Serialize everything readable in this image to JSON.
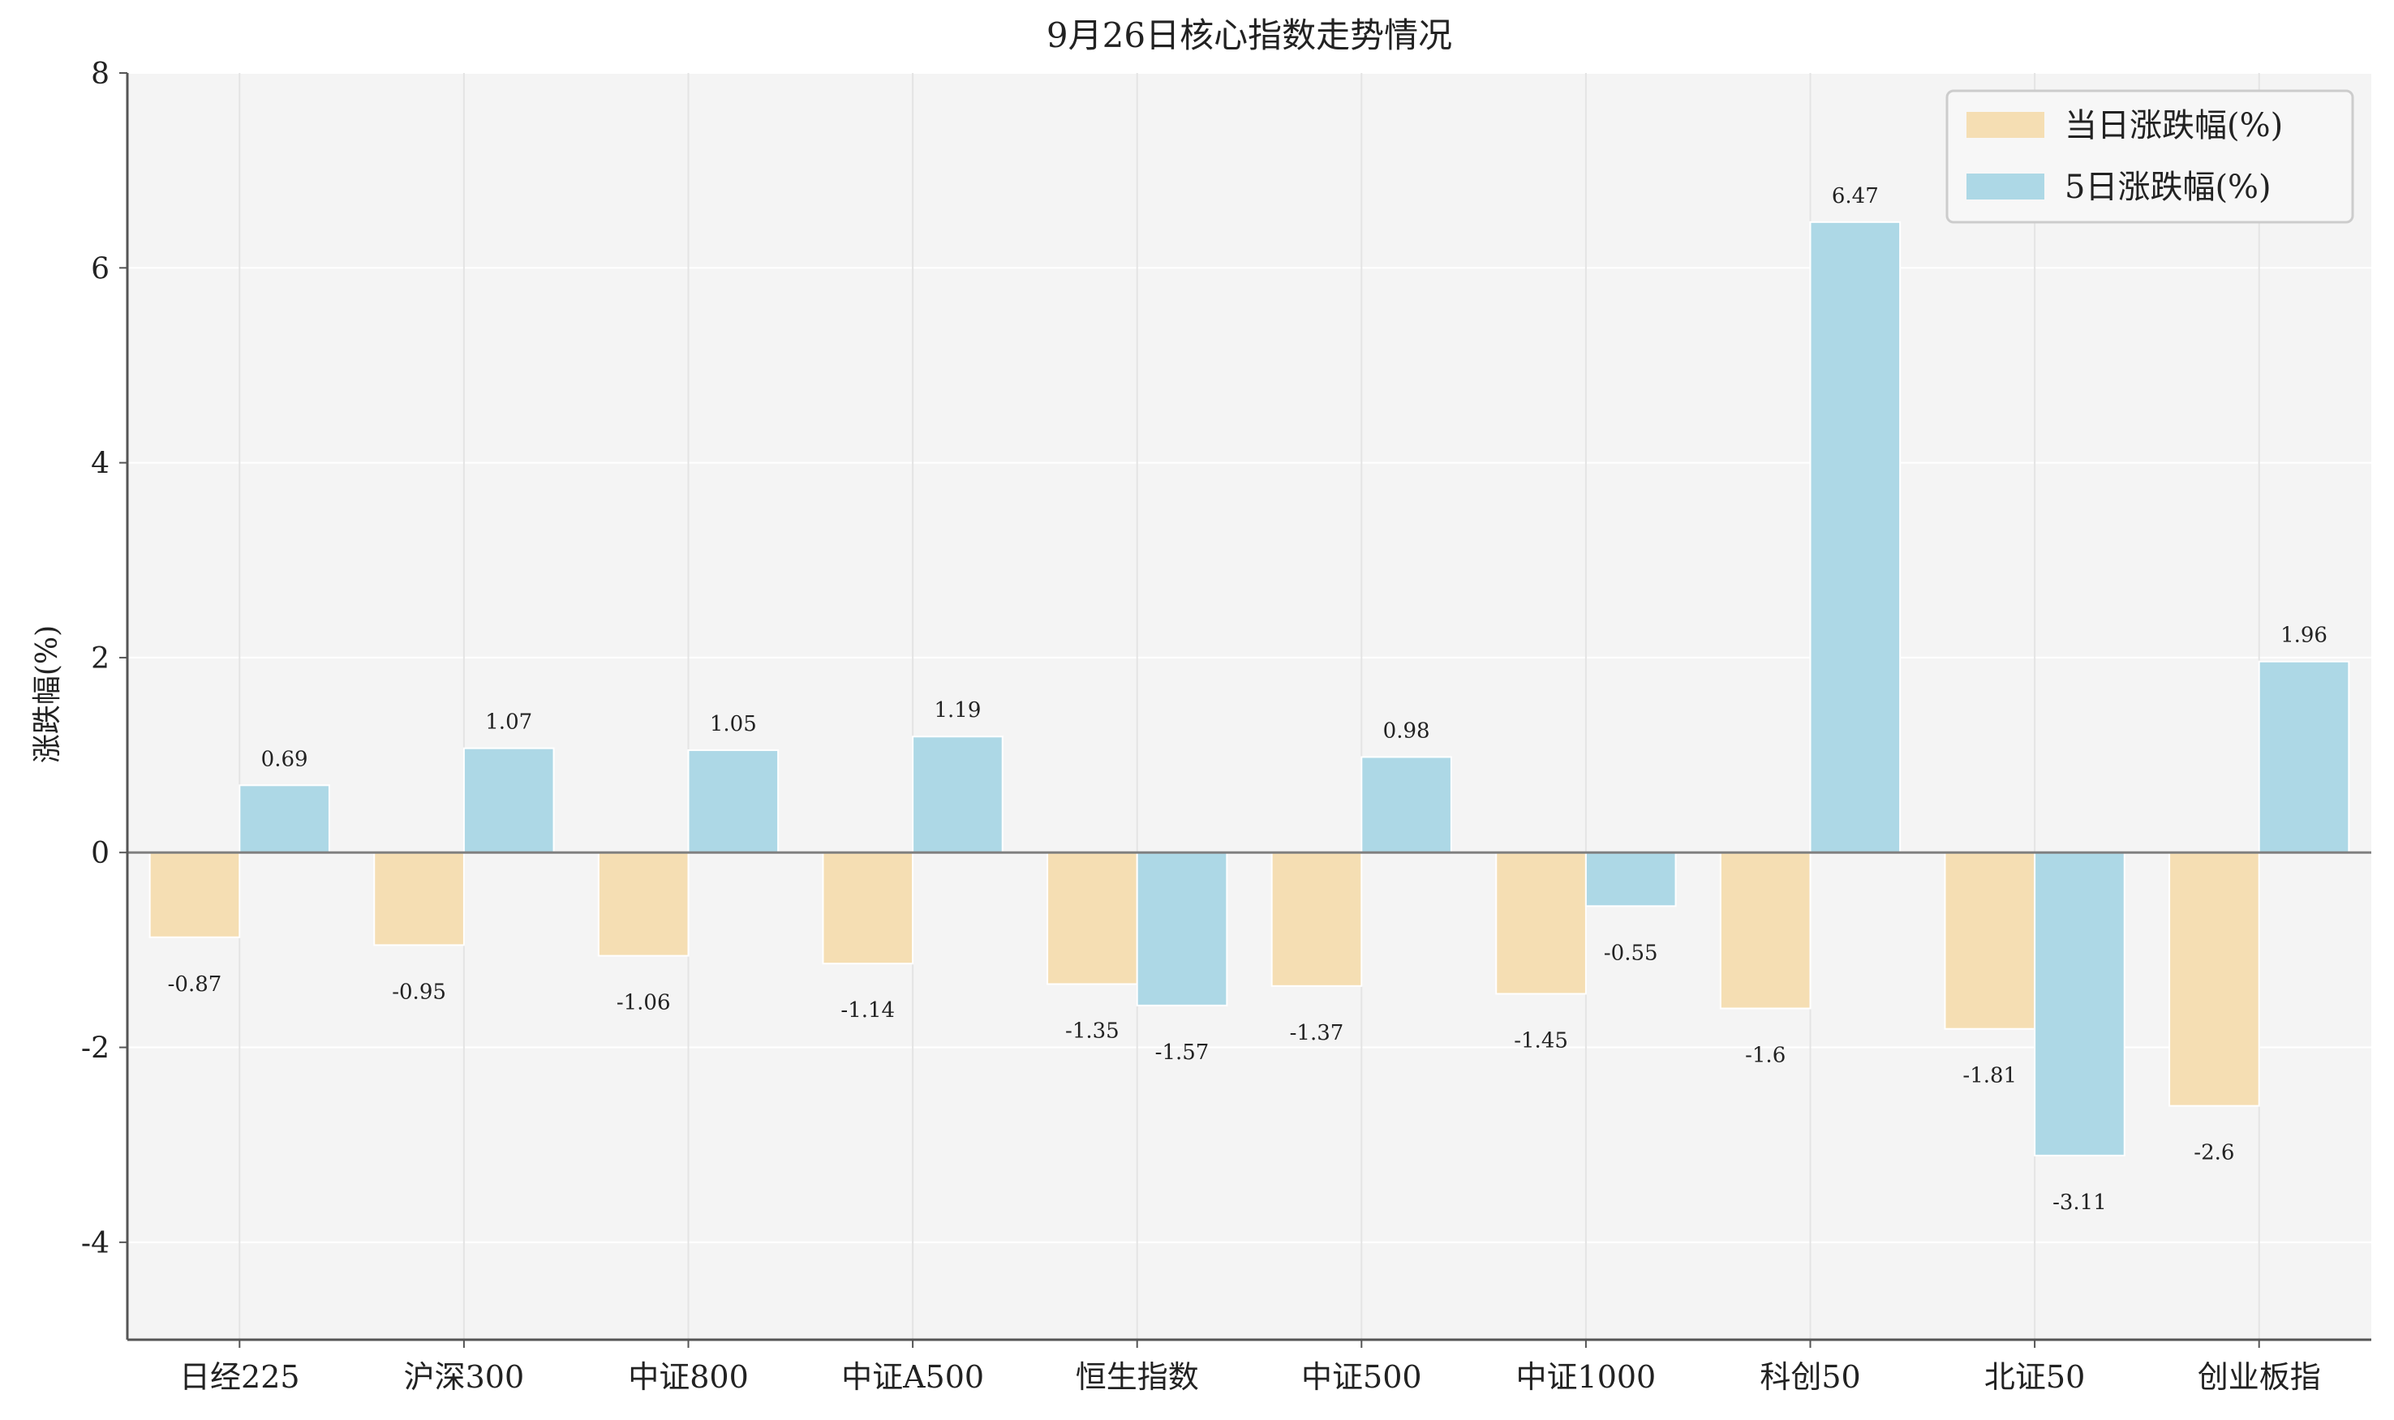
{
  "chart_data": {
    "type": "bar",
    "title": "9月26日核心指数走势情况",
    "xlabel": "",
    "ylabel": "涨跌幅(%)",
    "ylim": [
      -5,
      8
    ],
    "yticks": [
      8,
      6,
      4,
      2,
      0,
      -2,
      -4
    ],
    "grid": true,
    "legend_position": "top-right",
    "categories": [
      "日经225",
      "沪深300",
      "中证800",
      "中证A500",
      "恒生指数",
      "中证500",
      "中证1000",
      "科创50",
      "北证50",
      "创业板指"
    ],
    "series": [
      {
        "name": "当日涨跌幅(%)",
        "color": "#f5deb3",
        "values": [
          -0.87,
          -0.95,
          -1.06,
          -1.14,
          -1.35,
          -1.37,
          -1.45,
          -1.6,
          -1.81,
          -2.6
        ]
      },
      {
        "name": "5日涨跌幅(%)",
        "color": "#add8e6",
        "values": [
          0.69,
          1.07,
          1.05,
          1.19,
          -1.57,
          0.98,
          -0.55,
          6.47,
          -3.11,
          1.96
        ]
      }
    ],
    "plot_background": "#f4f4f4",
    "grid_color": "#ffffff",
    "zero_line_color": "#808080"
  }
}
